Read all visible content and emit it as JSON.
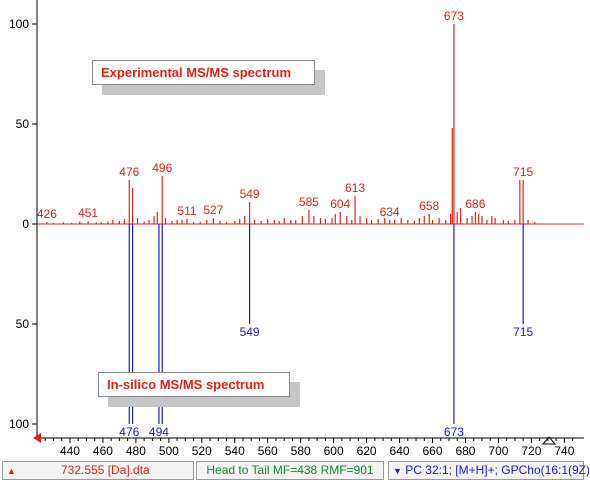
{
  "chart_data": {
    "type": "bar",
    "xlim": [
      420,
      745
    ],
    "ylim": [
      -105,
      105
    ],
    "x_ticks": [
      440,
      460,
      480,
      500,
      520,
      540,
      560,
      580,
      600,
      620,
      640,
      660,
      680,
      700,
      720,
      740
    ],
    "y_ticks": [
      {
        "value": 100,
        "label": "100"
      },
      {
        "value": 50,
        "label": "50"
      },
      {
        "value": 0,
        "label": "0"
      },
      {
        "value": -50,
        "label": "50"
      },
      {
        "value": -100,
        "label": "100"
      }
    ],
    "series": [
      {
        "color": "#e32119",
        "peaks": [
          [
            426,
            1
          ],
          [
            430,
            0.5
          ],
          [
            436,
            0.8
          ],
          [
            441,
            0.6
          ],
          [
            446,
            1.2
          ],
          [
            451,
            1.5
          ],
          [
            456,
            0.8
          ],
          [
            459,
            1
          ],
          [
            463,
            1.2
          ],
          [
            466,
            2
          ],
          [
            470,
            1.5
          ],
          [
            473,
            2.5
          ],
          [
            476,
            22
          ],
          [
            478,
            18
          ],
          [
            481,
            3
          ],
          [
            485,
            1.2
          ],
          [
            488,
            2
          ],
          [
            491,
            4
          ],
          [
            493,
            6
          ],
          [
            496,
            24
          ],
          [
            498,
            3
          ],
          [
            502,
            1.5
          ],
          [
            505,
            2
          ],
          [
            508,
            2
          ],
          [
            511,
            2.5
          ],
          [
            515,
            1
          ],
          [
            519,
            1.2
          ],
          [
            523,
            2
          ],
          [
            527,
            3
          ],
          [
            531,
            1.5
          ],
          [
            535,
            1
          ],
          [
            540,
            1.5
          ],
          [
            543,
            2.5
          ],
          [
            546,
            4
          ],
          [
            549,
            11
          ],
          [
            552,
            2
          ],
          [
            556,
            1.5
          ],
          [
            560,
            2.5
          ],
          [
            564,
            2
          ],
          [
            567,
            1.5
          ],
          [
            570,
            3
          ],
          [
            574,
            2
          ],
          [
            577,
            2
          ],
          [
            581,
            4
          ],
          [
            585,
            7
          ],
          [
            588,
            4
          ],
          [
            592,
            3
          ],
          [
            595,
            2.5
          ],
          [
            599,
            3
          ],
          [
            601,
            5
          ],
          [
            604,
            6
          ],
          [
            608,
            4
          ],
          [
            611,
            2
          ],
          [
            613,
            14
          ],
          [
            616,
            4
          ],
          [
            620,
            3
          ],
          [
            623,
            2
          ],
          [
            627,
            2.5
          ],
          [
            631,
            3
          ],
          [
            634,
            2
          ],
          [
            637,
            2
          ],
          [
            641,
            3
          ],
          [
            645,
            2
          ],
          [
            649,
            1.5
          ],
          [
            652,
            3
          ],
          [
            655,
            4
          ],
          [
            658,
            5
          ],
          [
            660,
            2
          ],
          [
            664,
            3
          ],
          [
            668,
            2
          ],
          [
            671,
            5
          ],
          [
            672,
            48
          ],
          [
            673,
            100
          ],
          [
            675,
            6
          ],
          [
            677,
            8
          ],
          [
            681,
            3
          ],
          [
            684,
            4
          ],
          [
            686,
            6
          ],
          [
            688,
            5
          ],
          [
            690,
            4
          ],
          [
            693,
            2
          ],
          [
            696,
            4
          ],
          [
            698,
            3
          ],
          [
            703,
            2
          ],
          [
            706,
            1.5
          ],
          [
            710,
            2
          ],
          [
            713,
            22
          ],
          [
            715,
            22
          ],
          [
            718,
            2
          ],
          [
            722,
            1
          ]
        ]
      },
      {
        "color": "#1a1ad6",
        "peaks": [
          [
            476,
            -100
          ],
          [
            478,
            -100
          ],
          [
            494,
            -100
          ],
          [
            496,
            -100
          ],
          [
            549,
            -50
          ],
          [
            673,
            -100
          ],
          [
            715,
            -50
          ]
        ]
      }
    ],
    "annotations": [
      {
        "text": "426",
        "x": 426,
        "y": 1,
        "color": "#e32119"
      },
      {
        "text": "451",
        "x": 451,
        "y": 1.5,
        "color": "#e32119"
      },
      {
        "text": "476",
        "x": 476,
        "y": 22,
        "color": "#e32119"
      },
      {
        "text": "496",
        "x": 496,
        "y": 24,
        "color": "#e32119"
      },
      {
        "text": "511",
        "x": 511,
        "y": 2.5,
        "color": "#e32119"
      },
      {
        "text": "527",
        "x": 527,
        "y": 3,
        "color": "#e32119"
      },
      {
        "text": "549",
        "x": 549,
        "y": 11,
        "color": "#e32119"
      },
      {
        "text": "585",
        "x": 585,
        "y": 7,
        "color": "#e32119"
      },
      {
        "text": "604",
        "x": 604,
        "y": 6,
        "color": "#e32119"
      },
      {
        "text": "613",
        "x": 613,
        "y": 14,
        "color": "#e32119"
      },
      {
        "text": "634",
        "x": 634,
        "y": 2,
        "color": "#e32119"
      },
      {
        "text": "658",
        "x": 658,
        "y": 5,
        "color": "#e32119"
      },
      {
        "text": "673",
        "x": 673,
        "y": 100,
        "color": "#e32119"
      },
      {
        "text": "686",
        "x": 686,
        "y": 6,
        "color": "#e32119"
      },
      {
        "text": "715",
        "x": 715,
        "y": 22,
        "color": "#e32119"
      },
      {
        "text": "476",
        "x": 476,
        "y": -100,
        "color": "#1a1ad6"
      },
      {
        "text": "494",
        "x": 494,
        "y": -100,
        "color": "#1a1ad6"
      },
      {
        "text": "549",
        "x": 549,
        "y": -50,
        "color": "#1a1ad6"
      },
      {
        "text": "673",
        "x": 673,
        "y": -100,
        "color": "#1a1ad6"
      },
      {
        "text": "715",
        "x": 715,
        "y": -50,
        "color": "#1a1ad6"
      }
    ],
    "grid": false
  },
  "labels": {
    "experimental": "Experimental MS/MS spectrum",
    "insilico": "In-silico MS/MS spectrum"
  },
  "status_bar": {
    "file": "732.555 [Da].dta",
    "match": "Head to Tail MF=438 RMF=901",
    "lipid": "PC 32:1; [M+H]+; GPCho(16:1(9Z)"
  },
  "colors": {
    "experimental": "#e32119",
    "insilico": "#1a1ad6",
    "axis": "#000000"
  }
}
